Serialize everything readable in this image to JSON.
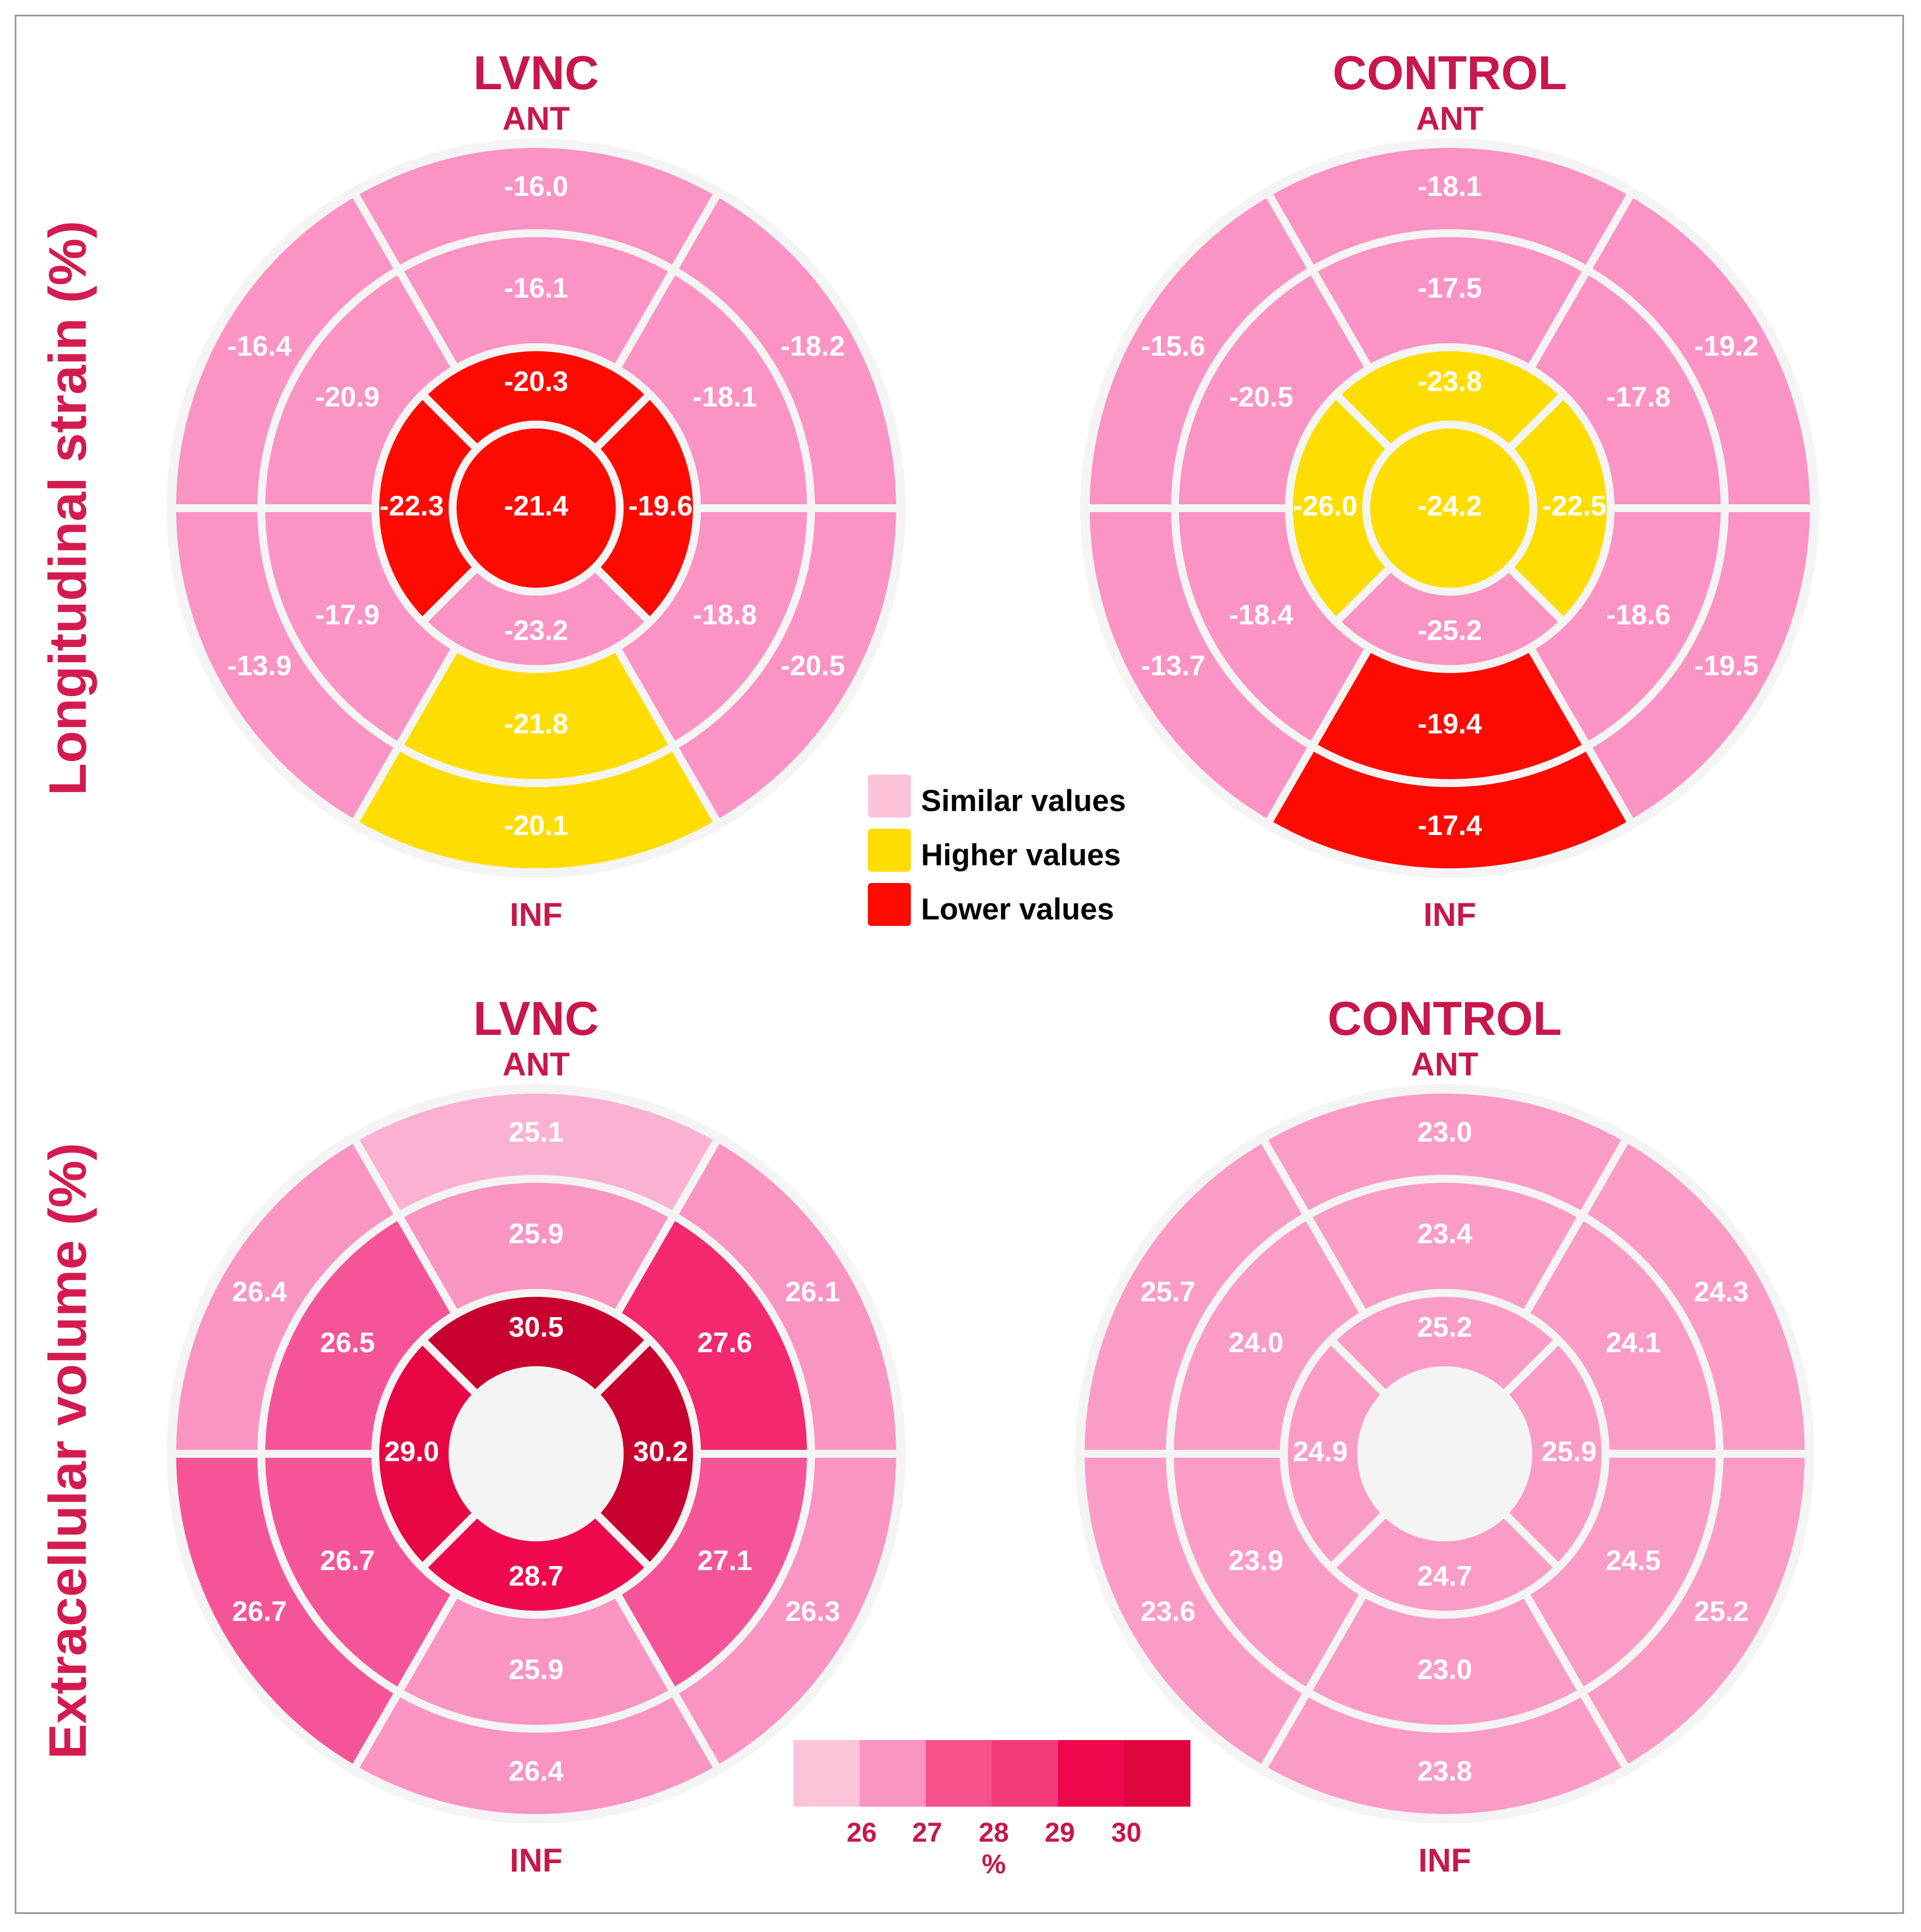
{
  "figure": {
    "row_labels": [
      "Longitudinal strain (%)",
      "Extracellular volume (%)"
    ],
    "orientation": {
      "top": "ANT",
      "bottom": "INF"
    }
  },
  "legend": {
    "items": [
      {
        "label": "Similar values",
        "color": "#fbc2d9"
      },
      {
        "label": "Higher values",
        "color": "#ffdd00"
      },
      {
        "label": "Lower values",
        "color": "#ff0a00"
      }
    ]
  },
  "colorbar": {
    "colors": [
      "#fbc4da",
      "#f994c3",
      "#f6518d",
      "#f33a7a",
      "#f0084e",
      "#e0063f"
    ],
    "tick_labels": [
      "26",
      "27",
      "28",
      "29",
      "30"
    ],
    "unit_label": "%"
  },
  "chart_data": [
    {
      "type": "bullseye",
      "title": "LVNC",
      "metric": "Longitudinal strain (%)",
      "top_label": "ANT",
      "bottom_label": "INF",
      "basal": [
        {
          "segment": "anterior",
          "value": "-16.0",
          "category": "similar"
        },
        {
          "segment": "anterolateral",
          "value": "-18.2",
          "category": "similar"
        },
        {
          "segment": "inferolateral",
          "value": "-20.5",
          "category": "similar"
        },
        {
          "segment": "inferior",
          "value": "-20.1",
          "category": "higher"
        },
        {
          "segment": "inferoseptal",
          "value": "-13.9",
          "category": "similar"
        },
        {
          "segment": "anteroseptal",
          "value": "-16.4",
          "category": "similar"
        }
      ],
      "mid": [
        {
          "segment": "anterior",
          "value": "-16.1",
          "category": "similar"
        },
        {
          "segment": "anterolateral",
          "value": "-18.1",
          "category": "similar"
        },
        {
          "segment": "inferolateral",
          "value": "-18.8",
          "category": "similar"
        },
        {
          "segment": "inferior",
          "value": "-21.8",
          "category": "higher"
        },
        {
          "segment": "inferoseptal",
          "value": "-17.9",
          "category": "similar"
        },
        {
          "segment": "anteroseptal",
          "value": "-20.9",
          "category": "similar"
        }
      ],
      "apical": [
        {
          "segment": "anterior",
          "value": "-20.3",
          "category": "lower"
        },
        {
          "segment": "lateral",
          "value": "-19.6",
          "category": "lower"
        },
        {
          "segment": "inferior",
          "value": "-23.2",
          "category": "similar"
        },
        {
          "segment": "septal",
          "value": "-22.3",
          "category": "lower"
        }
      ],
      "apex": {
        "value": "-21.4",
        "category": "lower"
      }
    },
    {
      "type": "bullseye",
      "title": "CONTROL",
      "metric": "Longitudinal strain (%)",
      "top_label": "ANT",
      "bottom_label": "INF",
      "basal": [
        {
          "segment": "anterior",
          "value": "-18.1",
          "category": "similar"
        },
        {
          "segment": "anterolateral",
          "value": "-19.2",
          "category": "similar"
        },
        {
          "segment": "inferolateral",
          "value": "-19.5",
          "category": "similar"
        },
        {
          "segment": "inferior",
          "value": "-17.4",
          "category": "lower"
        },
        {
          "segment": "inferoseptal",
          "value": "-13.7",
          "category": "similar"
        },
        {
          "segment": "anteroseptal",
          "value": "-15.6",
          "category": "similar"
        }
      ],
      "mid": [
        {
          "segment": "anterior",
          "value": "-17.5",
          "category": "similar"
        },
        {
          "segment": "anterolateral",
          "value": "-17.8",
          "category": "similar"
        },
        {
          "segment": "inferolateral",
          "value": "-18.6",
          "category": "similar"
        },
        {
          "segment": "inferior",
          "value": "-19.4",
          "category": "lower"
        },
        {
          "segment": "inferoseptal",
          "value": "-18.4",
          "category": "similar"
        },
        {
          "segment": "anteroseptal",
          "value": "-20.5",
          "category": "similar"
        }
      ],
      "apical": [
        {
          "segment": "anterior",
          "value": "-23.8",
          "category": "higher"
        },
        {
          "segment": "lateral",
          "value": "-22.5",
          "category": "higher"
        },
        {
          "segment": "inferior",
          "value": "-25.2",
          "category": "similar"
        },
        {
          "segment": "septal",
          "value": "-26.0",
          "category": "higher"
        }
      ],
      "apex": {
        "value": "-24.2",
        "category": "higher"
      }
    },
    {
      "type": "bullseye",
      "title": "LVNC",
      "metric": "Extracellular volume (%)",
      "top_label": "ANT",
      "bottom_label": "INF",
      "basal": [
        {
          "segment": "anterior",
          "value": "25.1"
        },
        {
          "segment": "anterolateral",
          "value": "26.1"
        },
        {
          "segment": "inferolateral",
          "value": "26.3"
        },
        {
          "segment": "inferior",
          "value": "26.4"
        },
        {
          "segment": "inferoseptal",
          "value": "26.7"
        },
        {
          "segment": "anteroseptal",
          "value": "26.4"
        }
      ],
      "mid": [
        {
          "segment": "anterior",
          "value": "25.9"
        },
        {
          "segment": "anterolateral",
          "value": "27.6"
        },
        {
          "segment": "inferolateral",
          "value": "27.1"
        },
        {
          "segment": "inferior",
          "value": "25.9"
        },
        {
          "segment": "inferoseptal",
          "value": "26.7"
        },
        {
          "segment": "anteroseptal",
          "value": "26.5"
        }
      ],
      "apical": [
        {
          "segment": "anterior",
          "value": "30.5"
        },
        {
          "segment": "lateral",
          "value": "30.2"
        },
        {
          "segment": "inferior",
          "value": "28.7"
        },
        {
          "segment": "septal",
          "value": "29.0"
        }
      ],
      "apex": null
    },
    {
      "type": "bullseye",
      "title": "CONTROL",
      "metric": "Extracellular volume (%)",
      "top_label": "ANT",
      "bottom_label": "INF",
      "basal": [
        {
          "segment": "anterior",
          "value": "23.0"
        },
        {
          "segment": "anterolateral",
          "value": "24.3"
        },
        {
          "segment": "inferolateral",
          "value": "25.2"
        },
        {
          "segment": "inferior",
          "value": "23.8"
        },
        {
          "segment": "inferoseptal",
          "value": "23.6"
        },
        {
          "segment": "anteroseptal",
          "value": "25.7"
        }
      ],
      "mid": [
        {
          "segment": "anterior",
          "value": "23.4"
        },
        {
          "segment": "anterolateral",
          "value": "24.1"
        },
        {
          "segment": "inferolateral",
          "value": "24.5"
        },
        {
          "segment": "inferior",
          "value": "23.0"
        },
        {
          "segment": "inferoseptal",
          "value": "23.9"
        },
        {
          "segment": "anteroseptal",
          "value": "24.0"
        }
      ],
      "apical": [
        {
          "segment": "anterior",
          "value": "25.2"
        },
        {
          "segment": "lateral",
          "value": "25.9"
        },
        {
          "segment": "inferior",
          "value": "24.7"
        },
        {
          "segment": "septal",
          "value": "24.9"
        }
      ],
      "apex": null
    }
  ]
}
